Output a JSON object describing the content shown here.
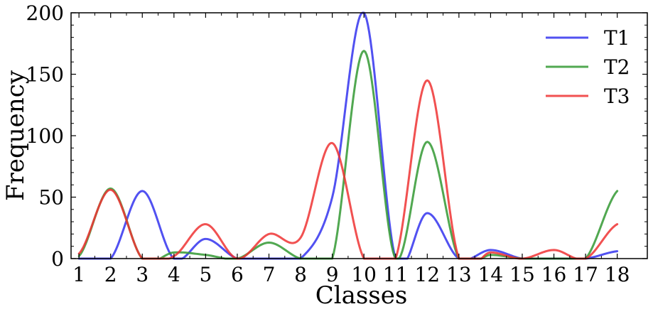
{
  "chart_data": {
    "type": "line",
    "xlabel": "Classes",
    "ylabel": "Frequency",
    "xlim": [
      0.75,
      18.95
    ],
    "ylim": [
      0,
      200
    ],
    "x_ticks": [
      1,
      2,
      3,
      4,
      5,
      6,
      7,
      8,
      9,
      10,
      11,
      12,
      13,
      14,
      15,
      16,
      17,
      18
    ],
    "y_ticks": [
      0,
      50,
      100,
      150,
      200
    ],
    "grid": false,
    "legend_position": "top-right",
    "x": [
      1,
      2,
      3,
      4,
      5,
      6,
      7,
      8,
      9,
      10,
      11,
      12,
      13,
      14,
      15,
      16,
      17,
      18
    ],
    "series": [
      {
        "name": "T1",
        "color": "#3333ee",
        "values": [
          0,
          0,
          55,
          0,
          16,
          0,
          0,
          0,
          50,
          200,
          0,
          37,
          0,
          7,
          0,
          0,
          0,
          6
        ]
      },
      {
        "name": "T2",
        "color": "#339933",
        "values": [
          2,
          57,
          0,
          5,
          3,
          0,
          13,
          0,
          0,
          169,
          0,
          95,
          0,
          3,
          0,
          0,
          0,
          55
        ]
      },
      {
        "name": "T3",
        "color": "#ee3333",
        "values": [
          4,
          56,
          0,
          2,
          28,
          0,
          20,
          17,
          94,
          0,
          0,
          145,
          0,
          5,
          0,
          7,
          0,
          28
        ]
      }
    ]
  }
}
